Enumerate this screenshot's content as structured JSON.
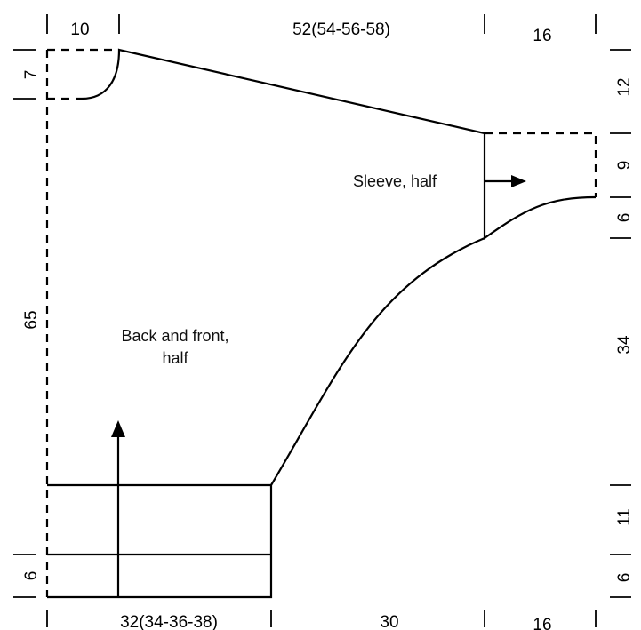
{
  "top_dims": [
    "10",
    "52(54-56-58)",
    "16"
  ],
  "bottom_dims": [
    "32(34-36-38)",
    "30",
    "16"
  ],
  "left_dims": [
    "7",
    "65",
    "6"
  ],
  "right_dims": [
    "12",
    "9",
    "6",
    "34",
    "11",
    "6"
  ],
  "labels": {
    "body": [
      "Back and front,",
      "half"
    ],
    "sleeve": "Sleeve, half"
  }
}
